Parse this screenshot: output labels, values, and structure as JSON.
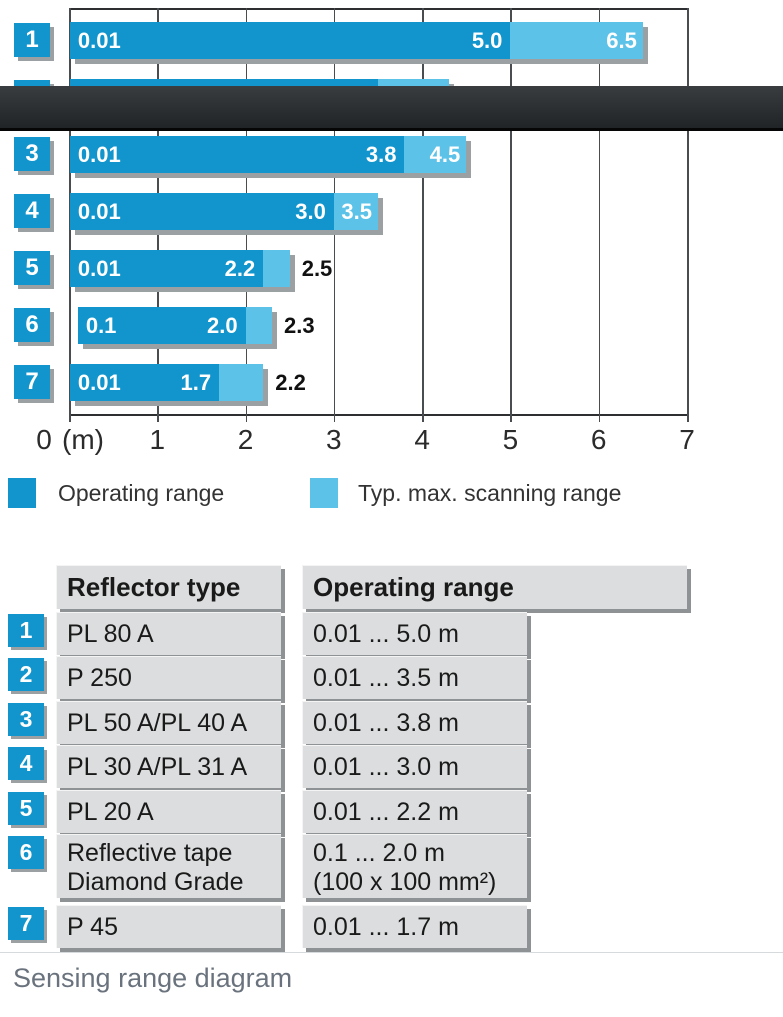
{
  "chart": {
    "axis": {
      "zero_label": "0",
      "unit_label": "(m)",
      "tick_labels": [
        "1",
        "2",
        "3",
        "4",
        "5",
        "6",
        "7"
      ]
    },
    "legend": [
      {
        "label": "Operating range",
        "color": "#1295cc"
      },
      {
        "label": "Typ. max. scanning range",
        "color": "#5cc2e8"
      }
    ],
    "rows": [
      {
        "id": "1",
        "start": 0.01,
        "operating_end": 5.0,
        "max_end": 6.5,
        "start_label": "0.01",
        "operating_label": "5.0",
        "max_label": "6.5",
        "max_label_outside": false
      },
      {
        "id": "2",
        "start": 0.01,
        "operating_end": 3.5,
        "max_end": 4.3,
        "start_label": "",
        "operating_label": "",
        "max_label": "",
        "max_label_outside": false
      },
      {
        "id": "3",
        "start": 0.01,
        "operating_end": 3.8,
        "max_end": 4.5,
        "start_label": "0.01",
        "operating_label": "3.8",
        "max_label": "4.5",
        "max_label_outside": false
      },
      {
        "id": "4",
        "start": 0.01,
        "operating_end": 3.0,
        "max_end": 3.5,
        "start_label": "0.01",
        "operating_label": "3.0",
        "max_label": "3.5",
        "max_label_outside": false
      },
      {
        "id": "5",
        "start": 0.01,
        "operating_end": 2.2,
        "max_end": 2.5,
        "start_label": "0.01",
        "operating_label": "2.2",
        "max_label": "2.5",
        "max_label_outside": true
      },
      {
        "id": "6",
        "start": 0.1,
        "operating_end": 2.0,
        "max_end": 2.3,
        "start_label": "0.1",
        "operating_label": "2.0",
        "max_label": "2.3",
        "max_label_outside": true
      },
      {
        "id": "7",
        "start": 0.01,
        "operating_end": 1.7,
        "max_end": 2.2,
        "start_label": "0.01",
        "operating_label": "1.7",
        "max_label": "2.2",
        "max_label_outside": true
      }
    ]
  },
  "chart_data": {
    "type": "bar",
    "orientation": "horizontal",
    "title": "Sensing range diagram",
    "xlabel": "(m)",
    "xlim": [
      0,
      7
    ],
    "grid": true,
    "legend_position": "bottom",
    "categories": [
      "1",
      "2",
      "3",
      "4",
      "5",
      "6",
      "7"
    ],
    "series": [
      {
        "name": "Operating range",
        "ranges": [
          [
            0.01,
            5.0
          ],
          [
            0.01,
            3.5
          ],
          [
            0.01,
            3.8
          ],
          [
            0.01,
            3.0
          ],
          [
            0.01,
            2.2
          ],
          [
            0.1,
            2.0
          ],
          [
            0.01,
            1.7
          ]
        ]
      },
      {
        "name": "Typ. max. scanning range",
        "max_values": [
          6.5,
          4.3,
          4.5,
          3.5,
          2.5,
          2.3,
          2.2
        ]
      }
    ]
  },
  "table": {
    "headers": {
      "reflector": "Reflector type",
      "range": "Operating range"
    },
    "rows": [
      {
        "id": "1",
        "reflector": [
          "PL 80 A"
        ],
        "range": [
          "0.01 ... 5.0 m"
        ]
      },
      {
        "id": "2",
        "reflector": [
          "P 250"
        ],
        "range": [
          "0.01 ... 3.5 m"
        ]
      },
      {
        "id": "3",
        "reflector": [
          "PL 50 A/PL 40 A"
        ],
        "range": [
          "0.01 ... 3.8 m"
        ]
      },
      {
        "id": "4",
        "reflector": [
          "PL 30 A/PL 31 A"
        ],
        "range": [
          "0.01 ... 3.0 m"
        ]
      },
      {
        "id": "5",
        "reflector": [
          "PL 20 A"
        ],
        "range": [
          "0.01 ... 2.2 m"
        ]
      },
      {
        "id": "6",
        "reflector": [
          "Reflective tape",
          "Diamond Grade"
        ],
        "range": [
          "0.1 ... 2.0 m",
          "(100 x 100 mm²)"
        ]
      },
      {
        "id": "7",
        "reflector": [
          "P 45"
        ],
        "range": [
          "0.01 ... 1.7 m"
        ]
      }
    ]
  },
  "caption": "Sensing range diagram",
  "colors": {
    "operating": "#1295cc",
    "scanning": "#5cc2e8",
    "badge": "#1295cc",
    "bar_shadow": "#9ba0a3",
    "grid": "#4a4d4f",
    "table_cell": "#dcddde",
    "table_shadow": "#8f9295",
    "band": "#2c2f32",
    "caption_text": "#6a737d"
  }
}
